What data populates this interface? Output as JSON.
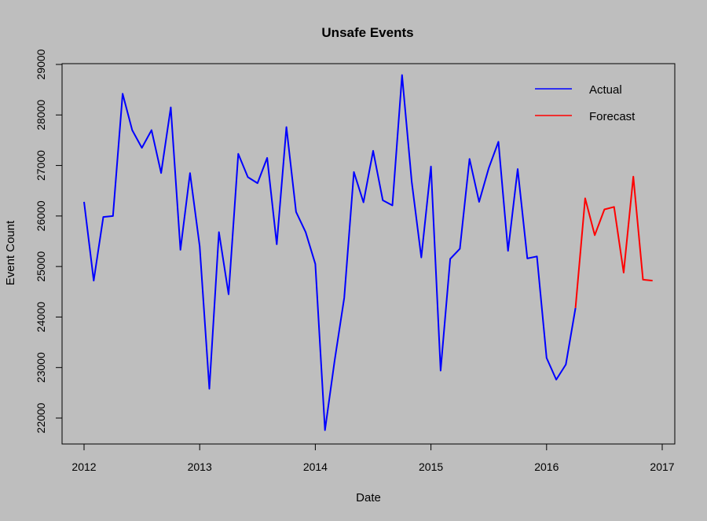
{
  "chart_data": {
    "type": "line",
    "title": "Unsafe Events",
    "xlabel": "Date",
    "ylabel": "Event Count",
    "xlim": [
      2012,
      2017
    ],
    "ylim": [
      21500,
      29000
    ],
    "x_ticks": [
      "2012",
      "2013",
      "2014",
      "2015",
      "2016",
      "2017"
    ],
    "y_ticks": [
      "22000",
      "23000",
      "24000",
      "25000",
      "26000",
      "27000",
      "28000",
      "29000"
    ],
    "grid": false,
    "legend_position": "top-right",
    "series": [
      {
        "name": "Actual",
        "color": "#0000ff",
        "x": [
          "2012-01",
          "2012-02",
          "2012-03",
          "2012-04",
          "2012-05",
          "2012-06",
          "2012-07",
          "2012-08",
          "2012-09",
          "2012-10",
          "2012-11",
          "2012-12",
          "2013-01",
          "2013-02",
          "2013-03",
          "2013-04",
          "2013-05",
          "2013-06",
          "2013-07",
          "2013-08",
          "2013-09",
          "2013-10",
          "2013-11",
          "2013-12",
          "2014-01",
          "2014-02",
          "2014-03",
          "2014-04",
          "2014-05",
          "2014-06",
          "2014-07",
          "2014-08",
          "2014-09",
          "2014-10",
          "2014-11",
          "2014-12",
          "2015-01",
          "2015-02",
          "2015-03",
          "2015-04",
          "2015-05",
          "2015-06",
          "2015-07",
          "2015-08",
          "2015-09",
          "2015-10",
          "2015-11",
          "2015-12",
          "2016-01",
          "2016-02",
          "2016-03",
          "2016-04"
        ],
        "y": [
          26280,
          24720,
          25980,
          26000,
          28420,
          27700,
          27350,
          27700,
          26850,
          28150,
          25330,
          26850,
          25400,
          22580,
          25680,
          24450,
          27230,
          26770,
          26650,
          27150,
          25440,
          27760,
          26080,
          25680,
          25050,
          21760,
          23130,
          24380,
          26870,
          26270,
          27290,
          26310,
          26210,
          28790,
          26680,
          25180,
          26980,
          22940,
          25150,
          25350,
          27130,
          26280,
          26950,
          27470,
          25310,
          26930,
          25160,
          25200,
          23190,
          22760,
          23060,
          24180
        ]
      },
      {
        "name": "Forecast",
        "color": "#ff0000",
        "x": [
          "2016-04",
          "2016-05",
          "2016-06",
          "2016-07",
          "2016-08",
          "2016-09",
          "2016-10",
          "2016-11",
          "2016-12"
        ],
        "y": [
          24180,
          26350,
          25620,
          26130,
          26180,
          24880,
          26780,
          24740,
          24720
        ]
      }
    ]
  }
}
